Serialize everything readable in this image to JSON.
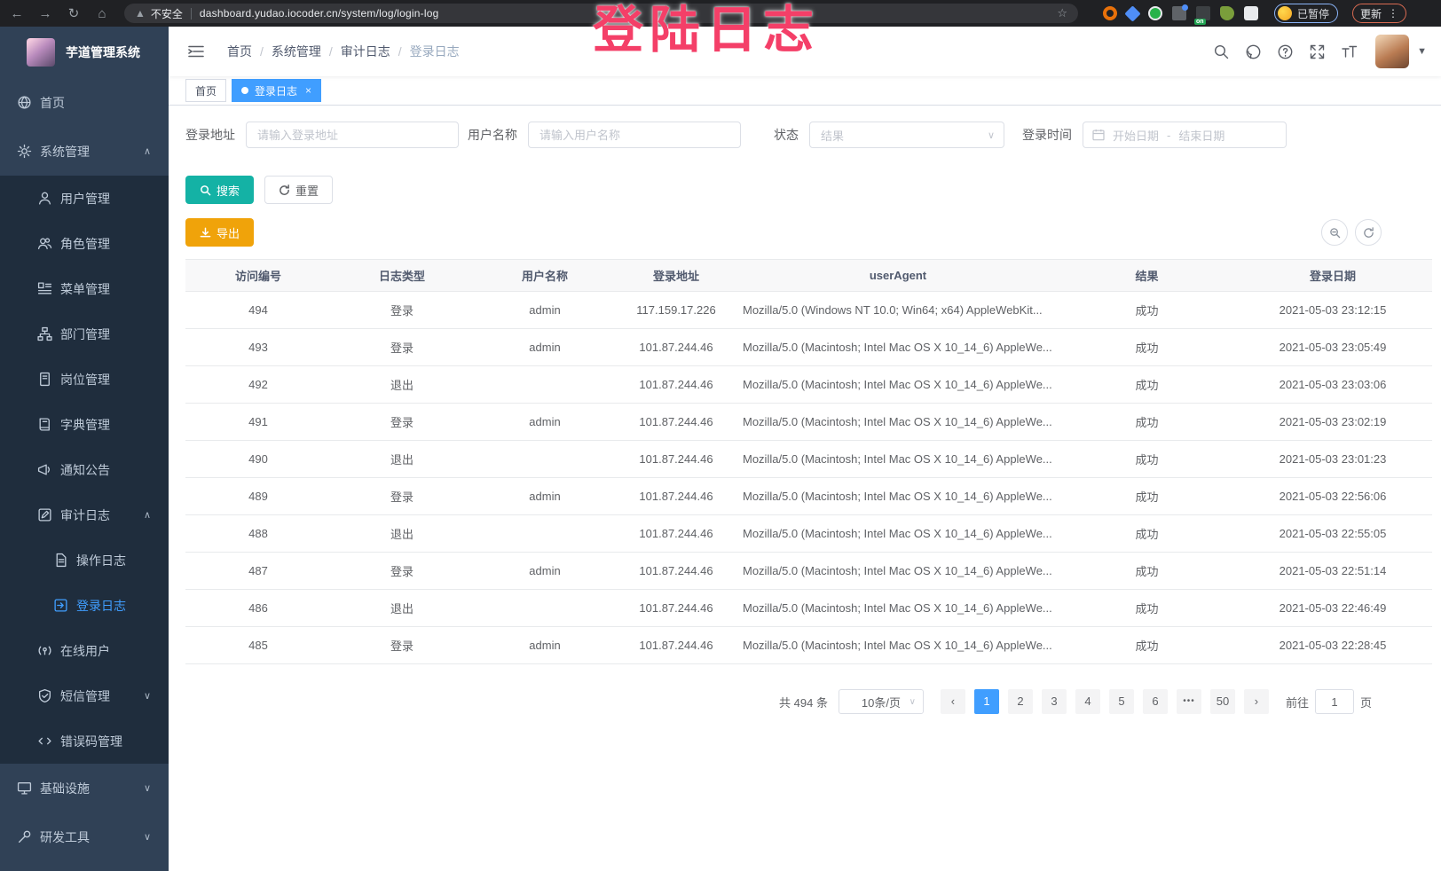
{
  "browser": {
    "security_label": "不安全",
    "url": "dashboard.yudao.iocoder.cn/system/log/login-log",
    "paused_badge": "已暂停",
    "update_button": "更新"
  },
  "annotation": {
    "title": "登陆日志",
    "color": "#f43f68"
  },
  "sidebar": {
    "logo_title": "芋道管理系统",
    "items": [
      {
        "id": "home",
        "label": "首页",
        "icon": "dashboard-icon",
        "depth": 0
      },
      {
        "id": "system-management",
        "label": "系统管理",
        "icon": "gear-icon",
        "depth": 0,
        "expand": "up"
      },
      {
        "id": "user-management",
        "label": "用户管理",
        "icon": "user-icon",
        "depth": 1,
        "dark": true
      },
      {
        "id": "role-management",
        "label": "角色管理",
        "icon": "role-icon",
        "depth": 1,
        "dark": true
      },
      {
        "id": "menu-management",
        "label": "菜单管理",
        "icon": "menu-icon",
        "depth": 1,
        "dark": true
      },
      {
        "id": "dept-management",
        "label": "部门管理",
        "icon": "dept-tree-icon",
        "depth": 1,
        "dark": true
      },
      {
        "id": "post-management",
        "label": "岗位管理",
        "icon": "post-badge-icon",
        "depth": 1,
        "dark": true
      },
      {
        "id": "dict-management",
        "label": "字典管理",
        "icon": "dict-book-icon",
        "depth": 1,
        "dark": true
      },
      {
        "id": "notice",
        "label": "通知公告",
        "icon": "notice-megaphone-icon",
        "depth": 1,
        "dark": true,
        "expandnone": true
      },
      {
        "id": "audit-log",
        "label": "审计日志",
        "icon": "audit-edit-icon",
        "depth": 1,
        "dark": true,
        "expand": "up"
      },
      {
        "id": "operation-log",
        "label": "操作日志",
        "icon": "operation-log-icon",
        "depth": 2,
        "dark": true
      },
      {
        "id": "login-log",
        "label": "登录日志",
        "icon": "login-log-icon",
        "depth": 2,
        "dark": true,
        "active": true
      },
      {
        "id": "online-users",
        "label": "在线用户",
        "icon": "online-user-icon",
        "depth": 1,
        "dark": true
      },
      {
        "id": "sms-management",
        "label": "短信管理",
        "icon": "sms-shield-icon",
        "depth": 1,
        "dark": true,
        "expand": "down"
      },
      {
        "id": "error-code-management",
        "label": "错误码管理",
        "icon": "error-code-icon",
        "depth": 1,
        "dark": true
      },
      {
        "id": "infrastructure",
        "label": "基础设施",
        "icon": "infra-monitor-icon",
        "depth": 0,
        "expand": "down"
      },
      {
        "id": "dev-tools",
        "label": "研发工具",
        "icon": "devtool-wrench-icon",
        "depth": 0,
        "expand": "down"
      }
    ]
  },
  "breadcrumb": [
    "首页",
    "系统管理",
    "审计日志",
    "登录日志"
  ],
  "tabs": [
    {
      "label": "首页",
      "active": false
    },
    {
      "label": "登录日志",
      "active": true,
      "closable": true
    }
  ],
  "filters": {
    "login_address": {
      "label": "登录地址",
      "placeholder": "请输入登录地址"
    },
    "username": {
      "label": "用户名称",
      "placeholder": "请输入用户名称"
    },
    "status": {
      "label": "状态",
      "placeholder": "结果"
    },
    "login_time": {
      "label": "登录时间",
      "start_placeholder": "开始日期",
      "separator": "-",
      "end_placeholder": "结束日期"
    }
  },
  "actions": {
    "search": "搜索",
    "reset": "重置",
    "export": "导出"
  },
  "table": {
    "headers": [
      "访问编号",
      "日志类型",
      "用户名称",
      "登录地址",
      "userAgent",
      "结果",
      "登录日期"
    ],
    "rows": [
      [
        "494",
        "登录",
        "admin",
        "117.159.17.226",
        "Mozilla/5.0 (Windows NT 10.0; Win64; x64) AppleWebKit...",
        "成功",
        "2021-05-03 23:12:15"
      ],
      [
        "493",
        "登录",
        "admin",
        "101.87.244.46",
        "Mozilla/5.0 (Macintosh; Intel Mac OS X 10_14_6) AppleWe...",
        "成功",
        "2021-05-03 23:05:49"
      ],
      [
        "492",
        "退出",
        "",
        "101.87.244.46",
        "Mozilla/5.0 (Macintosh; Intel Mac OS X 10_14_6) AppleWe...",
        "成功",
        "2021-05-03 23:03:06"
      ],
      [
        "491",
        "登录",
        "admin",
        "101.87.244.46",
        "Mozilla/5.0 (Macintosh; Intel Mac OS X 10_14_6) AppleWe...",
        "成功",
        "2021-05-03 23:02:19"
      ],
      [
        "490",
        "退出",
        "",
        "101.87.244.46",
        "Mozilla/5.0 (Macintosh; Intel Mac OS X 10_14_6) AppleWe...",
        "成功",
        "2021-05-03 23:01:23"
      ],
      [
        "489",
        "登录",
        "admin",
        "101.87.244.46",
        "Mozilla/5.0 (Macintosh; Intel Mac OS X 10_14_6) AppleWe...",
        "成功",
        "2021-05-03 22:56:06"
      ],
      [
        "488",
        "退出",
        "",
        "101.87.244.46",
        "Mozilla/5.0 (Macintosh; Intel Mac OS X 10_14_6) AppleWe...",
        "成功",
        "2021-05-03 22:55:05"
      ],
      [
        "487",
        "登录",
        "admin",
        "101.87.244.46",
        "Mozilla/5.0 (Macintosh; Intel Mac OS X 10_14_6) AppleWe...",
        "成功",
        "2021-05-03 22:51:14"
      ],
      [
        "486",
        "退出",
        "",
        "101.87.244.46",
        "Mozilla/5.0 (Macintosh; Intel Mac OS X 10_14_6) AppleWe...",
        "成功",
        "2021-05-03 22:46:49"
      ],
      [
        "485",
        "登录",
        "admin",
        "101.87.244.46",
        "Mozilla/5.0 (Macintosh; Intel Mac OS X 10_14_6) AppleWe...",
        "成功",
        "2021-05-03 22:28:45"
      ]
    ]
  },
  "pagination": {
    "total": "共 494 条",
    "page_size": "10条/页",
    "prev": "‹",
    "pages": [
      "1",
      "2",
      "3",
      "4",
      "5",
      "6"
    ],
    "active_page": "1",
    "ellipsis": "•••",
    "last_page": "50",
    "next": "›",
    "goto_label": "前往",
    "goto_value": "1",
    "page_suffix": "页"
  }
}
